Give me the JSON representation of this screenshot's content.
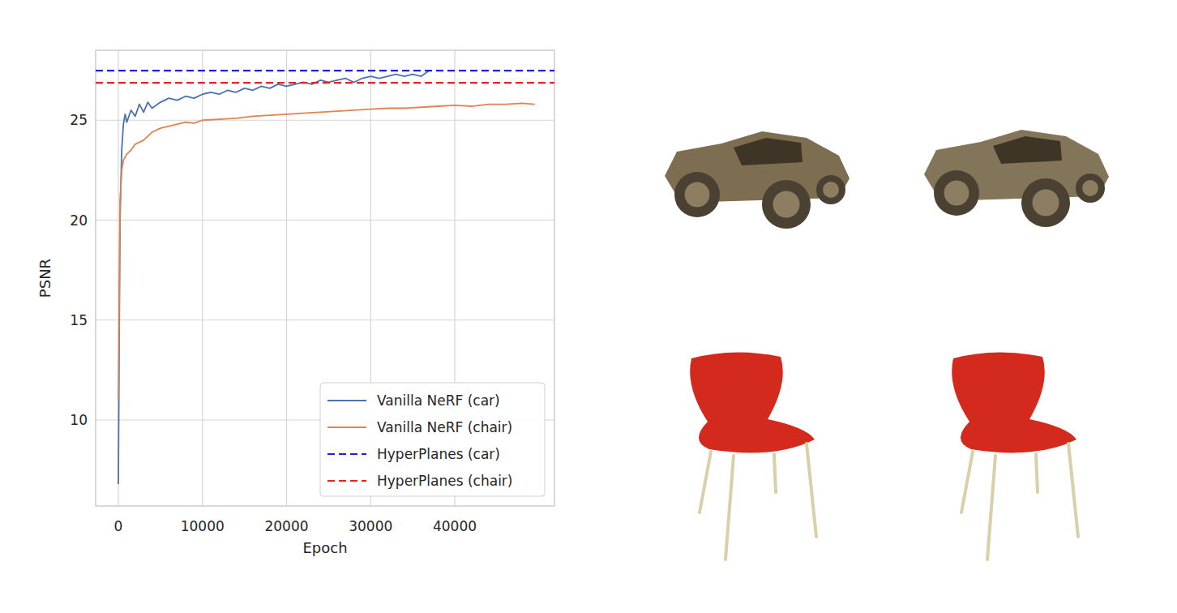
{
  "chart_data": {
    "type": "line",
    "x_label": "Epoch",
    "y_label": "PSNR",
    "xlim": [
      -2700,
      51850
    ],
    "ylim": [
      5.7,
      28.5
    ],
    "xticks": [
      0,
      10000,
      20000,
      30000,
      40000
    ],
    "yticks": [
      10,
      15,
      20,
      25
    ],
    "grid": true,
    "legend": "lower right",
    "series": [
      {
        "name": "Vanilla NeRF (car)",
        "color": "#4c72b0",
        "line_style": "solid",
        "x": [
          0,
          100,
          200,
          400,
          600,
          800,
          1000,
          1500,
          2000,
          2500,
          3000,
          3500,
          4000,
          5000,
          6000,
          7000,
          8000,
          9000,
          10000,
          11000,
          12000,
          13000,
          14000,
          15000,
          16000,
          17000,
          18000,
          19000,
          20000,
          21000,
          22000,
          23000,
          24000,
          25000,
          26000,
          27000,
          28000,
          29000,
          30000,
          31000,
          32000,
          33000,
          34000,
          35000,
          36000,
          37000
        ],
        "values": [
          6.8,
          14,
          20,
          23.5,
          24.8,
          25.3,
          24.9,
          25.5,
          25.2,
          25.8,
          25.4,
          25.9,
          25.6,
          25.9,
          26.1,
          26.0,
          26.2,
          26.1,
          26.3,
          26.4,
          26.3,
          26.5,
          26.4,
          26.6,
          26.5,
          26.7,
          26.6,
          26.8,
          26.7,
          26.8,
          26.9,
          26.8,
          27.0,
          26.9,
          27.0,
          27.1,
          26.9,
          27.1,
          27.2,
          27.1,
          27.2,
          27.3,
          27.2,
          27.3,
          27.2,
          27.5
        ]
      },
      {
        "name": "Vanilla NeRF (chair)",
        "color": "#dd8452",
        "line_style": "solid",
        "x": [
          0,
          100,
          200,
          400,
          600,
          1000,
          1500,
          2000,
          3000,
          4000,
          5000,
          6000,
          7000,
          8000,
          9000,
          10000,
          12000,
          14000,
          16000,
          18000,
          20000,
          22000,
          24000,
          26000,
          28000,
          30000,
          32000,
          34000,
          36000,
          38000,
          40000,
          42000,
          44000,
          46000,
          48000,
          49500
        ],
        "values": [
          11,
          16,
          21,
          22.5,
          23,
          23.3,
          23.5,
          23.8,
          24.0,
          24.4,
          24.6,
          24.7,
          24.8,
          24.9,
          24.85,
          25.0,
          25.05,
          25.1,
          25.2,
          25.25,
          25.3,
          25.35,
          25.4,
          25.45,
          25.5,
          25.55,
          25.6,
          25.6,
          25.65,
          25.7,
          25.75,
          25.7,
          25.8,
          25.8,
          25.85,
          25.8
        ]
      },
      {
        "name": "HyperPlanes (car)",
        "color": "#1f1fe0",
        "line_style": "dashed",
        "x": [
          -2700,
          51850
        ],
        "values": [
          27.48,
          27.48
        ]
      },
      {
        "name": "HyperPlanes (chair)",
        "color": "#e8231f",
        "line_style": "dashed",
        "x": [
          -2700,
          51850
        ],
        "values": [
          26.87,
          26.87
        ]
      }
    ]
  }
}
